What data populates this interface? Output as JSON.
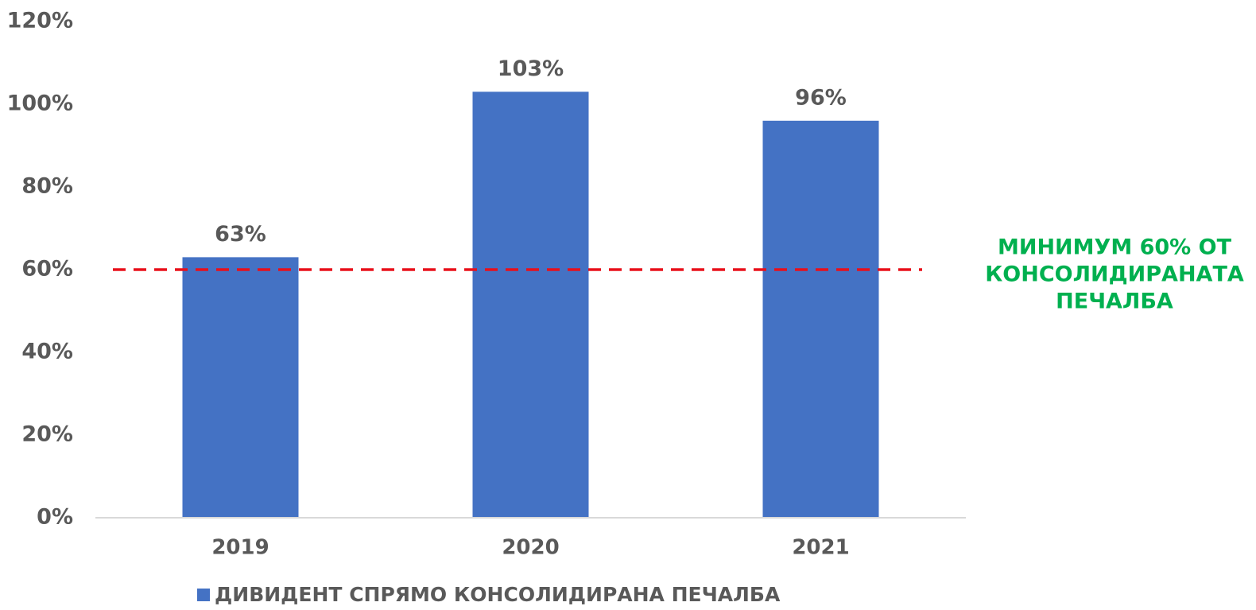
{
  "chart_data": {
    "type": "bar",
    "categories": [
      "2019",
      "2020",
      "2021"
    ],
    "series": [
      {
        "name": "ДИВИДЕНТ СПРЯМО КОНСОЛИДИРАНА ПЕЧАЛБА",
        "color": "#4472c4",
        "values": [
          63,
          103,
          96
        ],
        "value_labels": [
          "63%",
          "103%",
          "96%"
        ]
      }
    ],
    "ylim": [
      0,
      120
    ],
    "yticks": [
      {
        "value": 0,
        "label": "0%"
      },
      {
        "value": 20,
        "label": "20%"
      },
      {
        "value": 40,
        "label": "40%"
      },
      {
        "value": 60,
        "label": "60%"
      },
      {
        "value": 80,
        "label": "80%"
      },
      {
        "value": 100,
        "label": "100%"
      },
      {
        "value": 120,
        "label": "120%"
      }
    ],
    "grid": false,
    "legend": "bottom",
    "reference_line": {
      "value": 60,
      "color": "#e8101b",
      "style": "dashed"
    },
    "annotation": {
      "lines": [
        "МИНИМУМ 60% ОТ",
        "КОНСОЛИДИРАНАТА",
        "ПЕЧАЛБА"
      ],
      "color": "#00b04f"
    }
  }
}
